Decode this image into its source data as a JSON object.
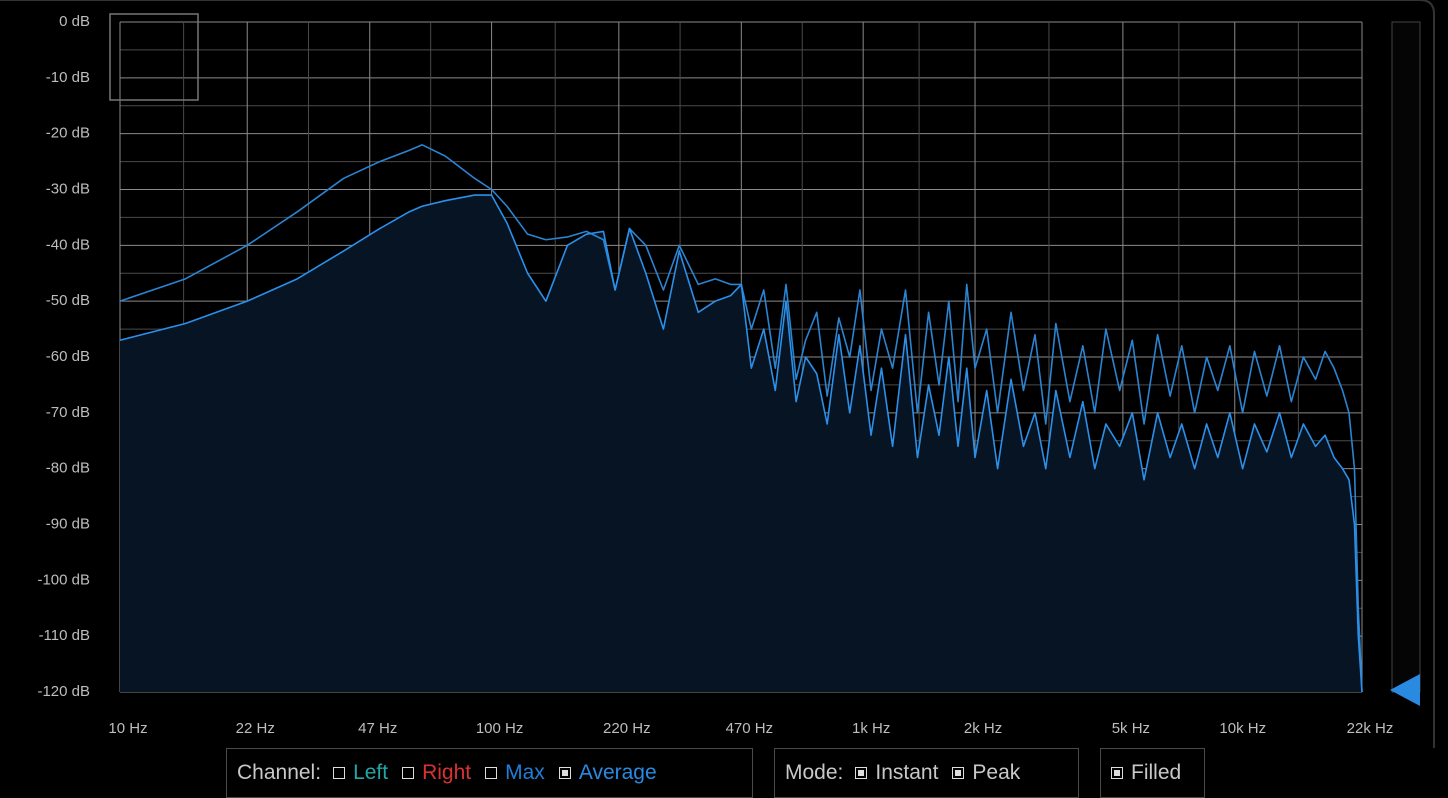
{
  "chart_data": {
    "type": "line",
    "x": [
      10,
      15,
      22,
      30,
      40,
      50,
      60,
      65,
      75,
      90,
      100,
      110,
      125,
      140,
      160,
      180,
      200,
      215,
      235,
      260,
      290,
      320,
      360,
      400,
      440,
      470,
      500,
      540,
      580,
      620,
      660,
      700,
      750,
      800,
      860,
      920,
      980,
      1050,
      1120,
      1200,
      1300,
      1400,
      1500,
      1600,
      1700,
      1800,
      1900,
      2000,
      2150,
      2300,
      2500,
      2700,
      2900,
      3100,
      3300,
      3600,
      3900,
      4200,
      4500,
      4900,
      5300,
      5700,
      6200,
      6700,
      7200,
      7800,
      8400,
      9000,
      9700,
      10500,
      11300,
      12200,
      13200,
      14200,
      15300,
      16500,
      17500,
      18500,
      19500,
      20300,
      21000,
      21500,
      22000
    ],
    "series": [
      {
        "color": "#2a84d2",
        "values": [
          -50,
          -46,
          -40,
          -34,
          -28,
          -25,
          -23,
          -22,
          -24,
          -28,
          -30,
          -33,
          -38,
          -39,
          -38.5,
          -37.5,
          -39,
          -48,
          -37,
          -40,
          -48,
          -40,
          -47,
          -46,
          -47,
          -47,
          -55,
          -48,
          -62,
          -47,
          -64,
          -57,
          -52,
          -67,
          -53,
          -60,
          -48,
          -66,
          -55,
          -62,
          -48,
          -70,
          -52,
          -65,
          -50,
          -68,
          -47,
          -62,
          -55,
          -70,
          -52,
          -66,
          -56,
          -72,
          -54,
          -68,
          -58,
          -70,
          -55,
          -66,
          -57,
          -72,
          -56,
          -67,
          -58,
          -70,
          -60,
          -66,
          -58,
          -70,
          -59,
          -67,
          -58,
          -68,
          -60,
          -64,
          -59,
          -62,
          -66,
          -70,
          -80,
          -105,
          -120
        ]
      },
      {
        "color": "#2b90ea",
        "fill": "#061424",
        "values": [
          -57,
          -54,
          -50,
          -46,
          -41,
          -37,
          -34,
          -33,
          -32,
          -31,
          -31,
          -36,
          -45,
          -50,
          -40,
          -38,
          -37.5,
          -48,
          -37,
          -45,
          -55,
          -41,
          -52,
          -50,
          -49,
          -47,
          -62,
          -55,
          -66,
          -50,
          -68,
          -60,
          -63,
          -72,
          -56,
          -70,
          -58,
          -74,
          -62,
          -76,
          -56,
          -78,
          -65,
          -74,
          -60,
          -76,
          -62,
          -78,
          -66,
          -80,
          -64,
          -76,
          -70,
          -80,
          -66,
          -78,
          -68,
          -80,
          -72,
          -76,
          -70,
          -82,
          -70,
          -78,
          -72,
          -80,
          -72,
          -78,
          -70,
          -80,
          -72,
          -77,
          -70,
          -78,
          -72,
          -76,
          -74,
          -78,
          -80,
          -82,
          -90,
          -110,
          -120
        ]
      }
    ],
    "log_x": true,
    "xlim": [
      10,
      22000
    ],
    "xticks": [
      {
        "value": 10,
        "label": "10 Hz"
      },
      {
        "value": 22,
        "label": "22 Hz"
      },
      {
        "value": 47,
        "label": "47 Hz"
      },
      {
        "value": 100,
        "label": "100 Hz"
      },
      {
        "value": 220,
        "label": "220 Hz"
      },
      {
        "value": 470,
        "label": "470 Hz"
      },
      {
        "value": 1000,
        "label": "1k Hz"
      },
      {
        "value": 2000,
        "label": "2k Hz"
      },
      {
        "value": 5000,
        "label": "5k Hz"
      },
      {
        "value": 10000,
        "label": "10k Hz"
      },
      {
        "value": 22000,
        "label": "22k Hz"
      }
    ],
    "ylim": [
      -120,
      0
    ],
    "yticks": [
      {
        "value": 0,
        "label": "0 dB"
      },
      {
        "value": -10,
        "label": "-10 dB"
      },
      {
        "value": -20,
        "label": "-20 dB"
      },
      {
        "value": -30,
        "label": "-30 dB"
      },
      {
        "value": -40,
        "label": "-40 dB"
      },
      {
        "value": -50,
        "label": "-50 dB"
      },
      {
        "value": -60,
        "label": "-60 dB"
      },
      {
        "value": -70,
        "label": "-70 dB"
      },
      {
        "value": -80,
        "label": "-80 dB"
      },
      {
        "value": -90,
        "label": "-90 dB"
      },
      {
        "value": -100,
        "label": "-100 dB"
      },
      {
        "value": -110,
        "label": "-110 dB"
      },
      {
        "value": -120,
        "label": "-120 dB"
      }
    ],
    "grid": true
  },
  "controls": {
    "channel_label": "Channel:",
    "channels": [
      {
        "label": "Left",
        "color": "#22a6a6",
        "checked": false
      },
      {
        "label": "Right",
        "color": "#d83232",
        "checked": false
      },
      {
        "label": "Max",
        "color": "#1f7fd8",
        "checked": false
      },
      {
        "label": "Average",
        "color": "#2a8ae2",
        "checked": true
      }
    ],
    "mode_label": "Mode:",
    "modes": [
      {
        "label": "Instant",
        "checked": true
      },
      {
        "label": "Peak",
        "checked": true
      }
    ],
    "filled": {
      "label": "Filled",
      "checked": true
    }
  }
}
